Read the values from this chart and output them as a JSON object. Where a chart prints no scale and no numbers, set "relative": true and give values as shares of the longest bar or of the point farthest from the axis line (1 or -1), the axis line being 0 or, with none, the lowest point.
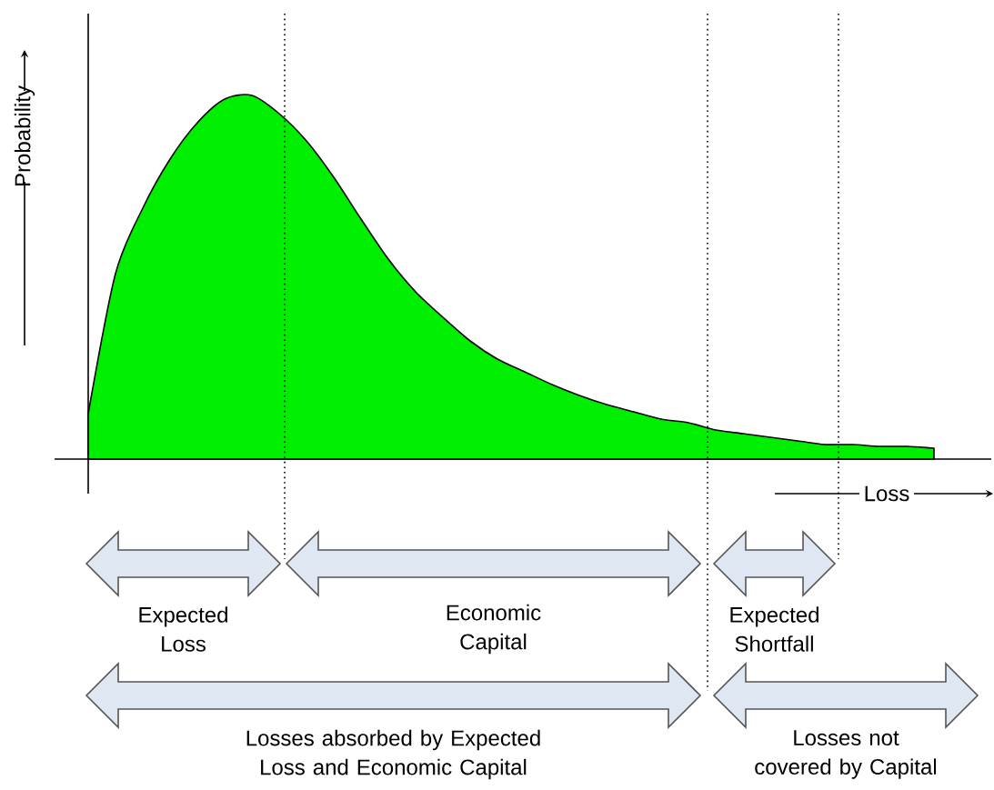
{
  "chart_data": {
    "type": "area",
    "relative": true,
    "xlabel": "Loss",
    "ylabel": "Probability",
    "color": "#00ee00",
    "categories": [
      null,
      null,
      null,
      null,
      null,
      null,
      null,
      null,
      null,
      null,
      null,
      null,
      null,
      null,
      null,
      null,
      null,
      null,
      null,
      null,
      null,
      null,
      null,
      null,
      null,
      null,
      null,
      null,
      null,
      null,
      null,
      null
    ],
    "values": [
      0.125,
      0.51,
      0.69,
      0.825,
      0.925,
      0.99,
      1,
      0.95,
      0.875,
      0.775,
      0.66,
      0.55,
      0.46,
      0.39,
      0.325,
      0.275,
      0.24,
      0.205,
      0.175,
      0.15,
      0.13,
      0.11,
      0.1,
      0.08,
      0.07,
      0.06,
      0.05,
      0.04,
      0.04,
      0.035,
      0.035,
      0.03
    ],
    "annotations": [
      "Expected Loss",
      "Economic Capital",
      "Expected Shortfall",
      "Losses absorbed by Expected Loss and Economic Capital",
      "Losses not covered by Capital"
    ]
  }
}
